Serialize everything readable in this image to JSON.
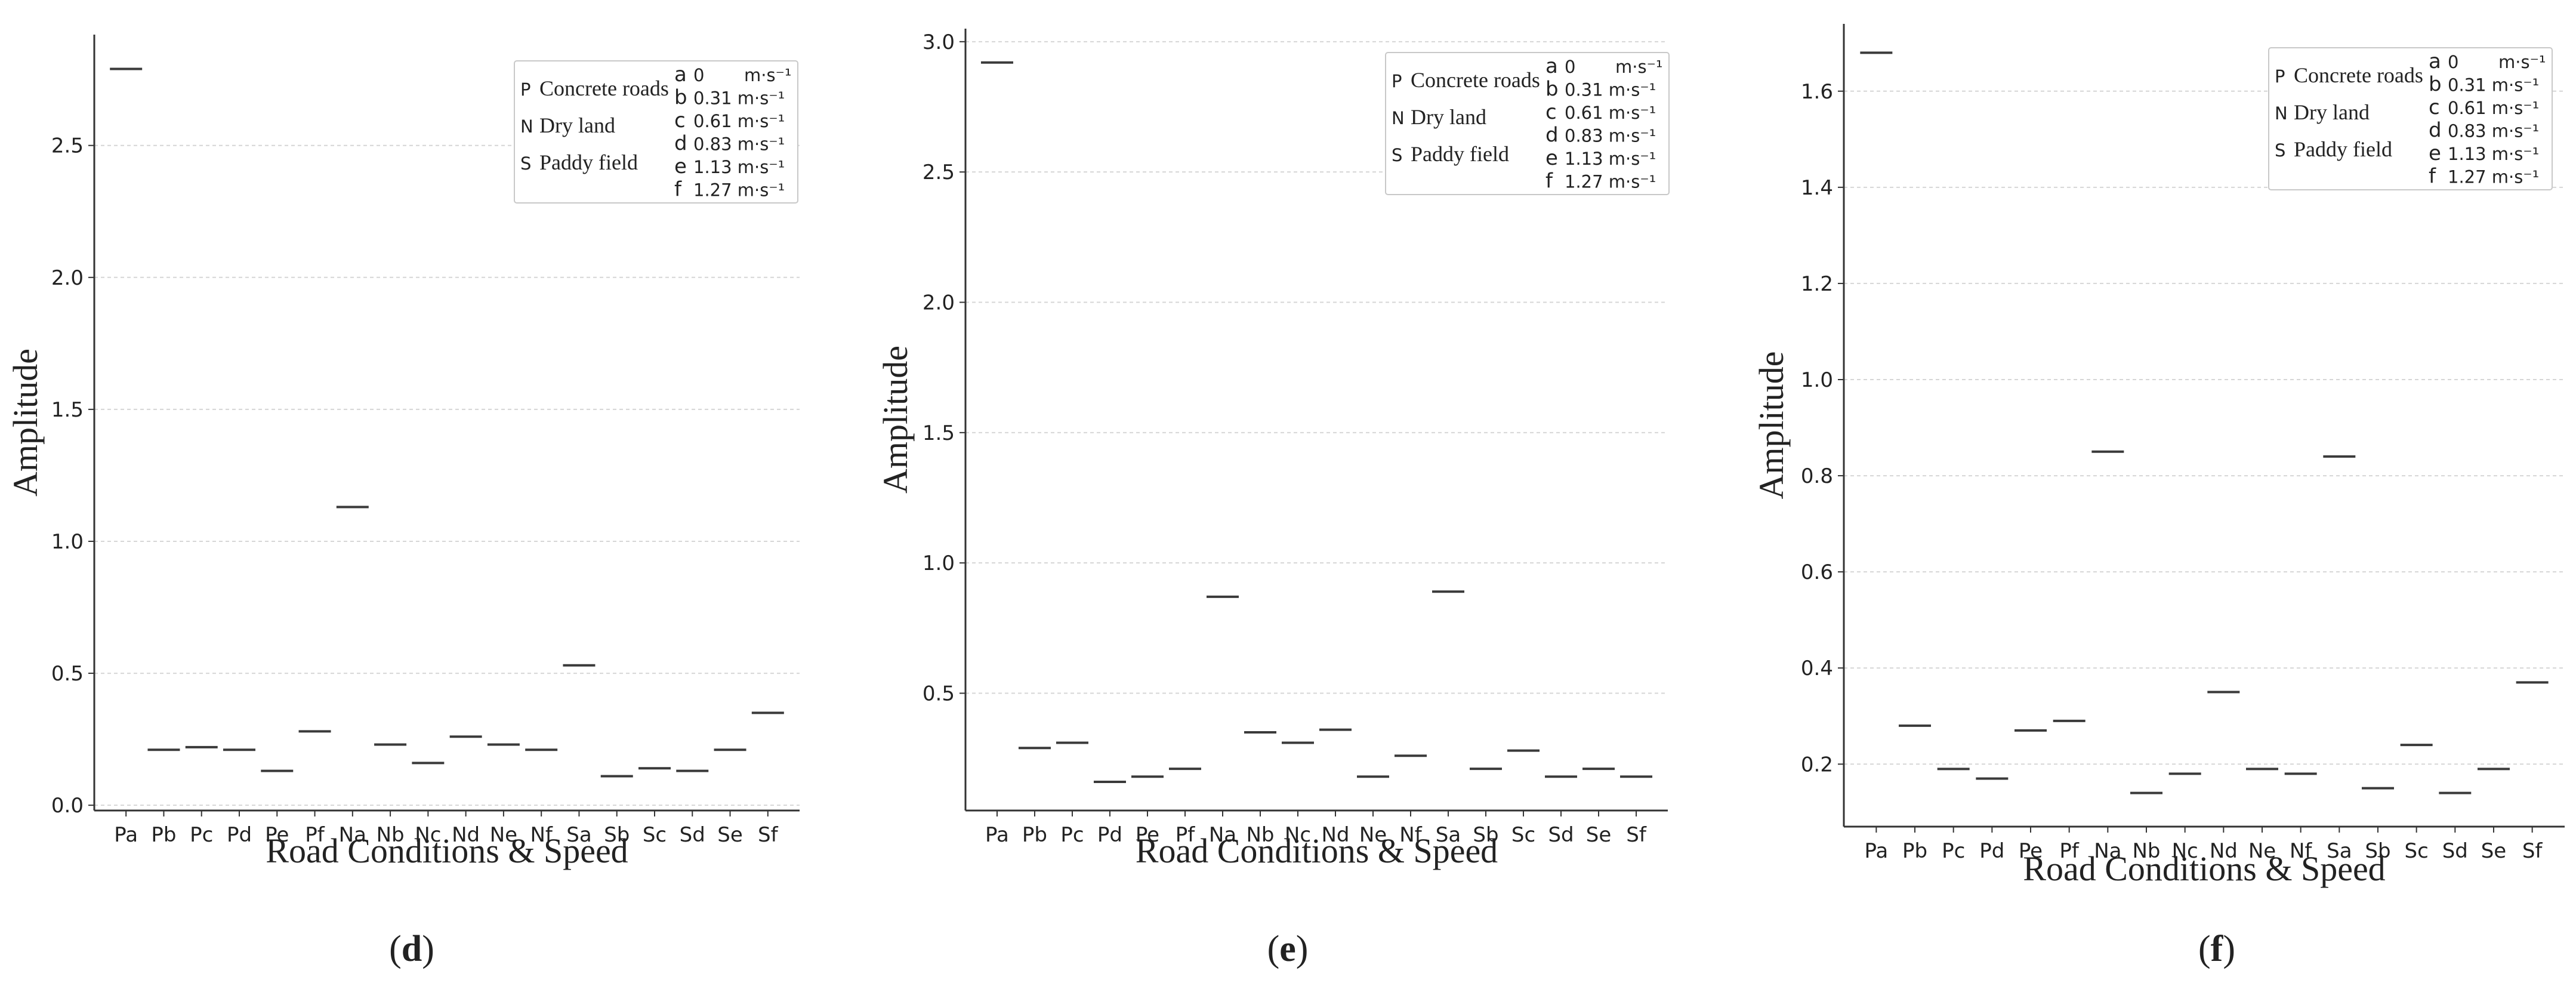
{
  "chart_data": [
    {
      "type": "scatter",
      "panel": "d",
      "xlabel": "Road Conditions & Speed",
      "ylabel": "Amplitude",
      "categories": [
        "Pa",
        "Pb",
        "Pc",
        "Pd",
        "Pe",
        "Pf",
        "Na",
        "Nb",
        "Nc",
        "Nd",
        "Ne",
        "Nf",
        "Sa",
        "Sb",
        "Sc",
        "Sd",
        "Se",
        "Sf"
      ],
      "values": [
        2.79,
        0.21,
        0.22,
        0.21,
        0.13,
        0.28,
        1.13,
        0.23,
        0.16,
        0.26,
        0.23,
        0.21,
        0.53,
        0.11,
        0.14,
        0.13,
        0.21,
        0.35
      ],
      "yticks": [
        0.0,
        0.5,
        1.0,
        1.5,
        2.0,
        2.5
      ],
      "ytick_labels": [
        "0.0",
        "0.5",
        "1.0",
        "1.5",
        "2.0",
        "2.5"
      ],
      "ylim": [
        -0.02,
        2.92
      ],
      "grid": "horizontal",
      "legend_placement": "top-right"
    },
    {
      "type": "scatter",
      "panel": "e",
      "xlabel": "Road Conditions & Speed",
      "ylabel": "Amplitude",
      "categories": [
        "Pa",
        "Pb",
        "Pc",
        "Pd",
        "Pe",
        "Pf",
        "Na",
        "Nb",
        "Nc",
        "Nd",
        "Ne",
        "Nf",
        "Sa",
        "Sb",
        "Sc",
        "Sd",
        "Se",
        "Sf"
      ],
      "values": [
        2.92,
        0.29,
        0.31,
        0.16,
        0.18,
        0.21,
        0.87,
        0.35,
        0.31,
        0.36,
        0.18,
        0.26,
        0.89,
        0.21,
        0.28,
        0.18,
        0.21,
        0.18
      ],
      "yticks": [
        0.5,
        1.0,
        1.5,
        2.0,
        2.5,
        3.0
      ],
      "ytick_labels": [
        "0.5",
        "1.0",
        "1.5",
        "2.0",
        "2.5",
        "3.0"
      ],
      "ylim": [
        0.05,
        3.05
      ],
      "grid": "horizontal",
      "legend_placement": "top-right"
    },
    {
      "type": "scatter",
      "panel": "f",
      "xlabel": "Road Conditions & Speed",
      "ylabel": "Amplitude",
      "categories": [
        "Pa",
        "Pb",
        "Pc",
        "Pd",
        "Pe",
        "Pf",
        "Na",
        "Nb",
        "Nc",
        "Nd",
        "Ne",
        "Nf",
        "Sa",
        "Sb",
        "Sc",
        "Sd",
        "Se",
        "Sf"
      ],
      "values": [
        1.68,
        0.28,
        0.19,
        0.17,
        0.27,
        0.29,
        0.85,
        0.14,
        0.18,
        0.35,
        0.19,
        0.18,
        0.84,
        0.15,
        0.24,
        0.14,
        0.19,
        0.37
      ],
      "yticks": [
        0.2,
        0.4,
        0.6,
        0.8,
        1.0,
        1.2,
        1.4,
        1.6
      ],
      "ytick_labels": [
        "0.2",
        "0.4",
        "0.6",
        "0.8",
        "1.0",
        "1.2",
        "1.4",
        "1.6"
      ],
      "ylim": [
        0.07,
        1.74
      ],
      "grid": "horizontal",
      "legend_placement": "top-right"
    }
  ],
  "legend": {
    "surfaces": [
      {
        "key": "P",
        "label": "Concrete roads"
      },
      {
        "key": "N",
        "label": "Dry land"
      },
      {
        "key": "S",
        "label": "Paddy field"
      }
    ],
    "speeds": [
      {
        "key": "a",
        "label": "0",
        "unit": "m·s⁻¹"
      },
      {
        "key": "b",
        "label": "0.31 m·s⁻¹"
      },
      {
        "key": "c",
        "label": "0.61 m·s⁻¹"
      },
      {
        "key": "d",
        "label": "0.83 m·s⁻¹"
      },
      {
        "key": "e",
        "label": "1.13 m·s⁻¹"
      },
      {
        "key": "f",
        "label": "1.27 m·s⁻¹"
      }
    ]
  },
  "colors": {
    "marker": "#3a3a3a",
    "grid": "#d6d6d6",
    "axis": "#333333",
    "legend_border": "#c8c8c8"
  }
}
